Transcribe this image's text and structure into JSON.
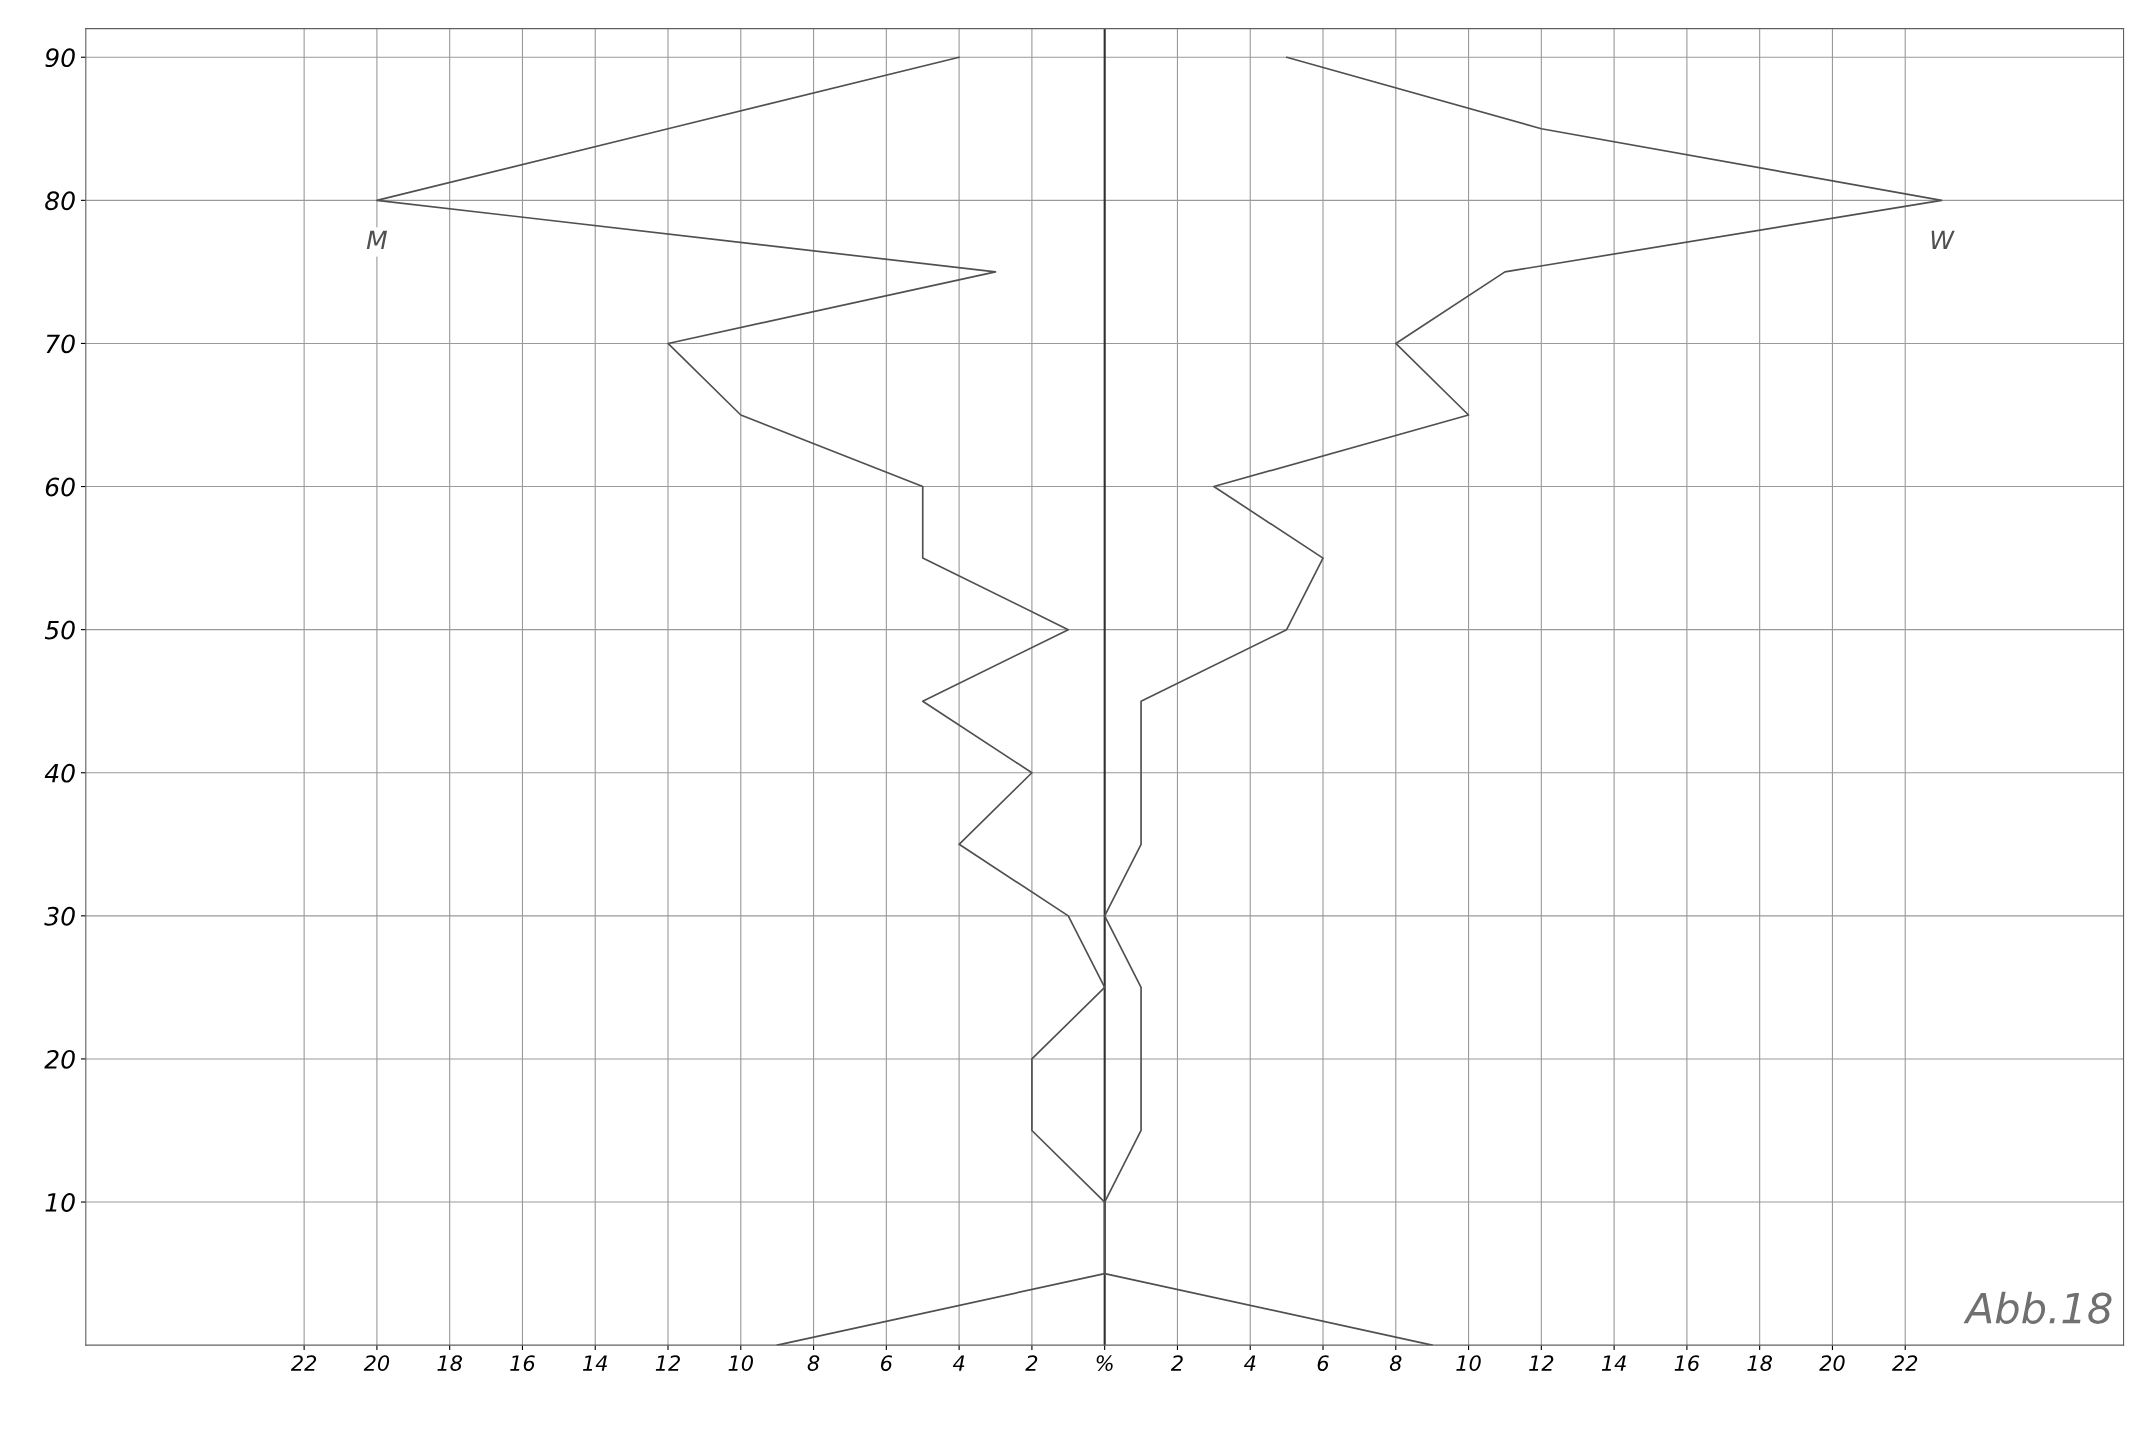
{
  "chart_data": {
    "type": "line",
    "annotations": [
      "Abb.18"
    ],
    "series": [
      {
        "name": "M",
        "color": "#505050",
        "x": [
          -9,
          0,
          0,
          -2,
          -2,
          0,
          -1,
          -4,
          -2,
          -5,
          -1,
          -5,
          -5,
          -10,
          -12,
          -3,
          -20,
          -12,
          -4
        ],
        "values": [
          0,
          5,
          10,
          15,
          20,
          25,
          30,
          35,
          40,
          45,
          50,
          55,
          60,
          65,
          70,
          75,
          80,
          85,
          90
        ]
      },
      {
        "name": "W",
        "color": "#505050",
        "x": [
          9,
          0,
          0,
          1,
          1,
          1,
          0,
          1,
          1,
          1,
          5,
          6,
          3,
          10,
          8,
          11,
          23,
          12,
          5
        ],
        "values": [
          0,
          5,
          10,
          15,
          20,
          25,
          30,
          35,
          40,
          45,
          50,
          55,
          60,
          65,
          70,
          75,
          80,
          85,
          90
        ]
      }
    ],
    "xlim": [
      -28,
      28
    ],
    "ylim": [
      0,
      92
    ],
    "xticks": [
      {
        "value": -22,
        "label": "22"
      },
      {
        "value": -20,
        "label": "20"
      },
      {
        "value": -18,
        "label": "18"
      },
      {
        "value": -16,
        "label": "16"
      },
      {
        "value": -14,
        "label": "14"
      },
      {
        "value": -12,
        "label": "12"
      },
      {
        "value": -10,
        "label": "10"
      },
      {
        "value": -8,
        "label": "8"
      },
      {
        "value": -6,
        "label": "6"
      },
      {
        "value": -4,
        "label": "4"
      },
      {
        "value": -2,
        "label": "2"
      },
      {
        "value": 0,
        "label": "%"
      },
      2,
      4,
      6,
      8,
      10,
      12,
      14,
      16,
      18,
      20,
      22
    ],
    "yticks": [
      10,
      20,
      30,
      40,
      50,
      60,
      70,
      80,
      90
    ],
    "ref_lines": [
      {
        "axis": "x",
        "value": 0,
        "label": null,
        "color": "#303030"
      }
    ],
    "grid": true,
    "legend": false,
    "marker": "none",
    "line_style": "solid"
  }
}
